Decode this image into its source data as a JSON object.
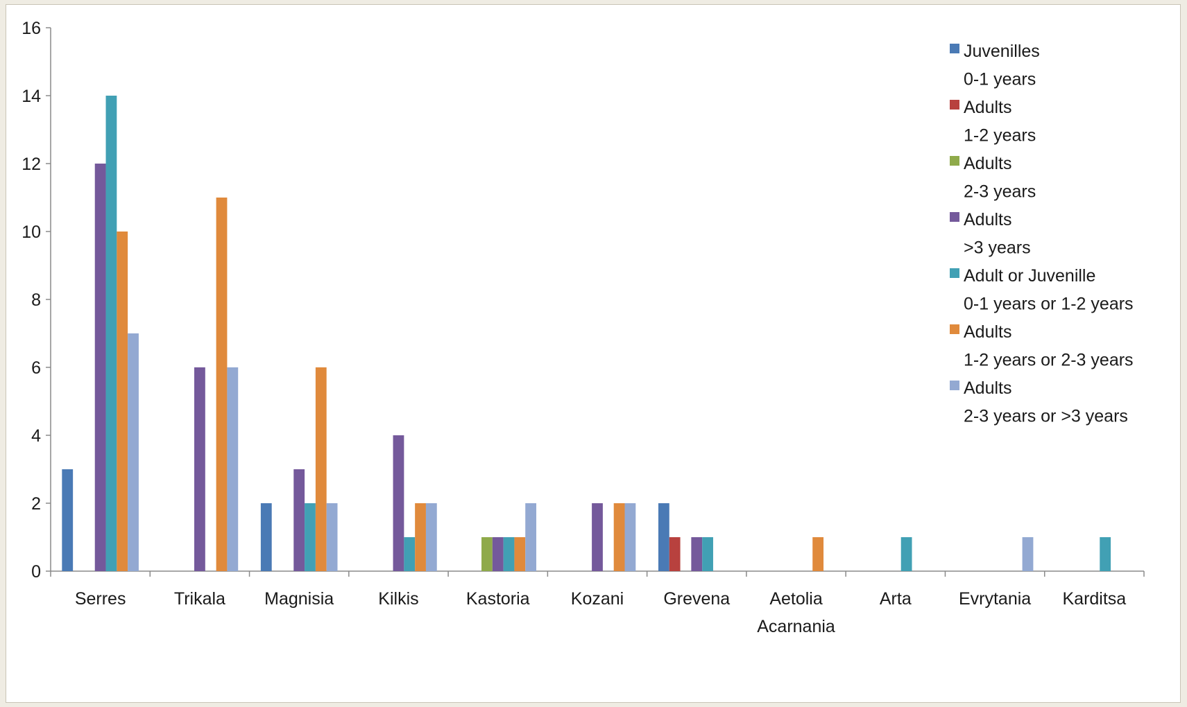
{
  "chart_data": {
    "type": "bar",
    "title": "",
    "xlabel": "",
    "ylabel": "",
    "ylim": [
      0,
      16
    ],
    "yticks": [
      0,
      2,
      4,
      6,
      8,
      10,
      12,
      14,
      16
    ],
    "grid": false,
    "legend_position": "top-right",
    "categories": [
      [
        "Serres"
      ],
      [
        "Trikala"
      ],
      [
        "Magnisia"
      ],
      [
        "Kilkis"
      ],
      [
        "Kastoria"
      ],
      [
        "Kozani"
      ],
      [
        "Grevena"
      ],
      [
        "Aetolia",
        "Acarnania"
      ],
      [
        "Arta"
      ],
      [
        "Evrytania"
      ],
      [
        "Karditsa"
      ]
    ],
    "series": [
      {
        "name": [
          "Juvenilles",
          "0-1 years"
        ],
        "color": "#4a7ab5",
        "values": [
          3,
          0,
          2,
          0,
          0,
          0,
          2,
          0,
          0,
          0,
          0
        ]
      },
      {
        "name": [
          "Adults",
          "1-2 years"
        ],
        "color": "#b8413e",
        "values": [
          0,
          0,
          0,
          0,
          0,
          0,
          1,
          0,
          0,
          0,
          0
        ]
      },
      {
        "name": [
          "Adults",
          "2-3 years"
        ],
        "color": "#8faa4a",
        "values": [
          0,
          0,
          0,
          0,
          1,
          0,
          0,
          0,
          0,
          0,
          0
        ]
      },
      {
        "name": [
          "Adults",
          ">3 years"
        ],
        "color": "#74599b",
        "values": [
          12,
          6,
          3,
          4,
          1,
          2,
          1,
          0,
          0,
          0,
          0
        ]
      },
      {
        "name": [
          "Adult or Juvenille",
          "0-1 years or 1-2 years"
        ],
        "color": "#41a0b4",
        "values": [
          14,
          0,
          2,
          1,
          1,
          0,
          1,
          0,
          1,
          0,
          1
        ]
      },
      {
        "name": [
          "Adults",
          "1-2 years or 2-3 years"
        ],
        "color": "#e08a3c",
        "values": [
          10,
          11,
          6,
          2,
          1,
          2,
          0,
          1,
          0,
          0,
          0
        ]
      },
      {
        "name": [
          "Adults",
          "2-3 years or >3 years"
        ],
        "color": "#93a9d2",
        "values": [
          7,
          6,
          2,
          2,
          2,
          2,
          0,
          0,
          0,
          1,
          0
        ]
      }
    ]
  }
}
